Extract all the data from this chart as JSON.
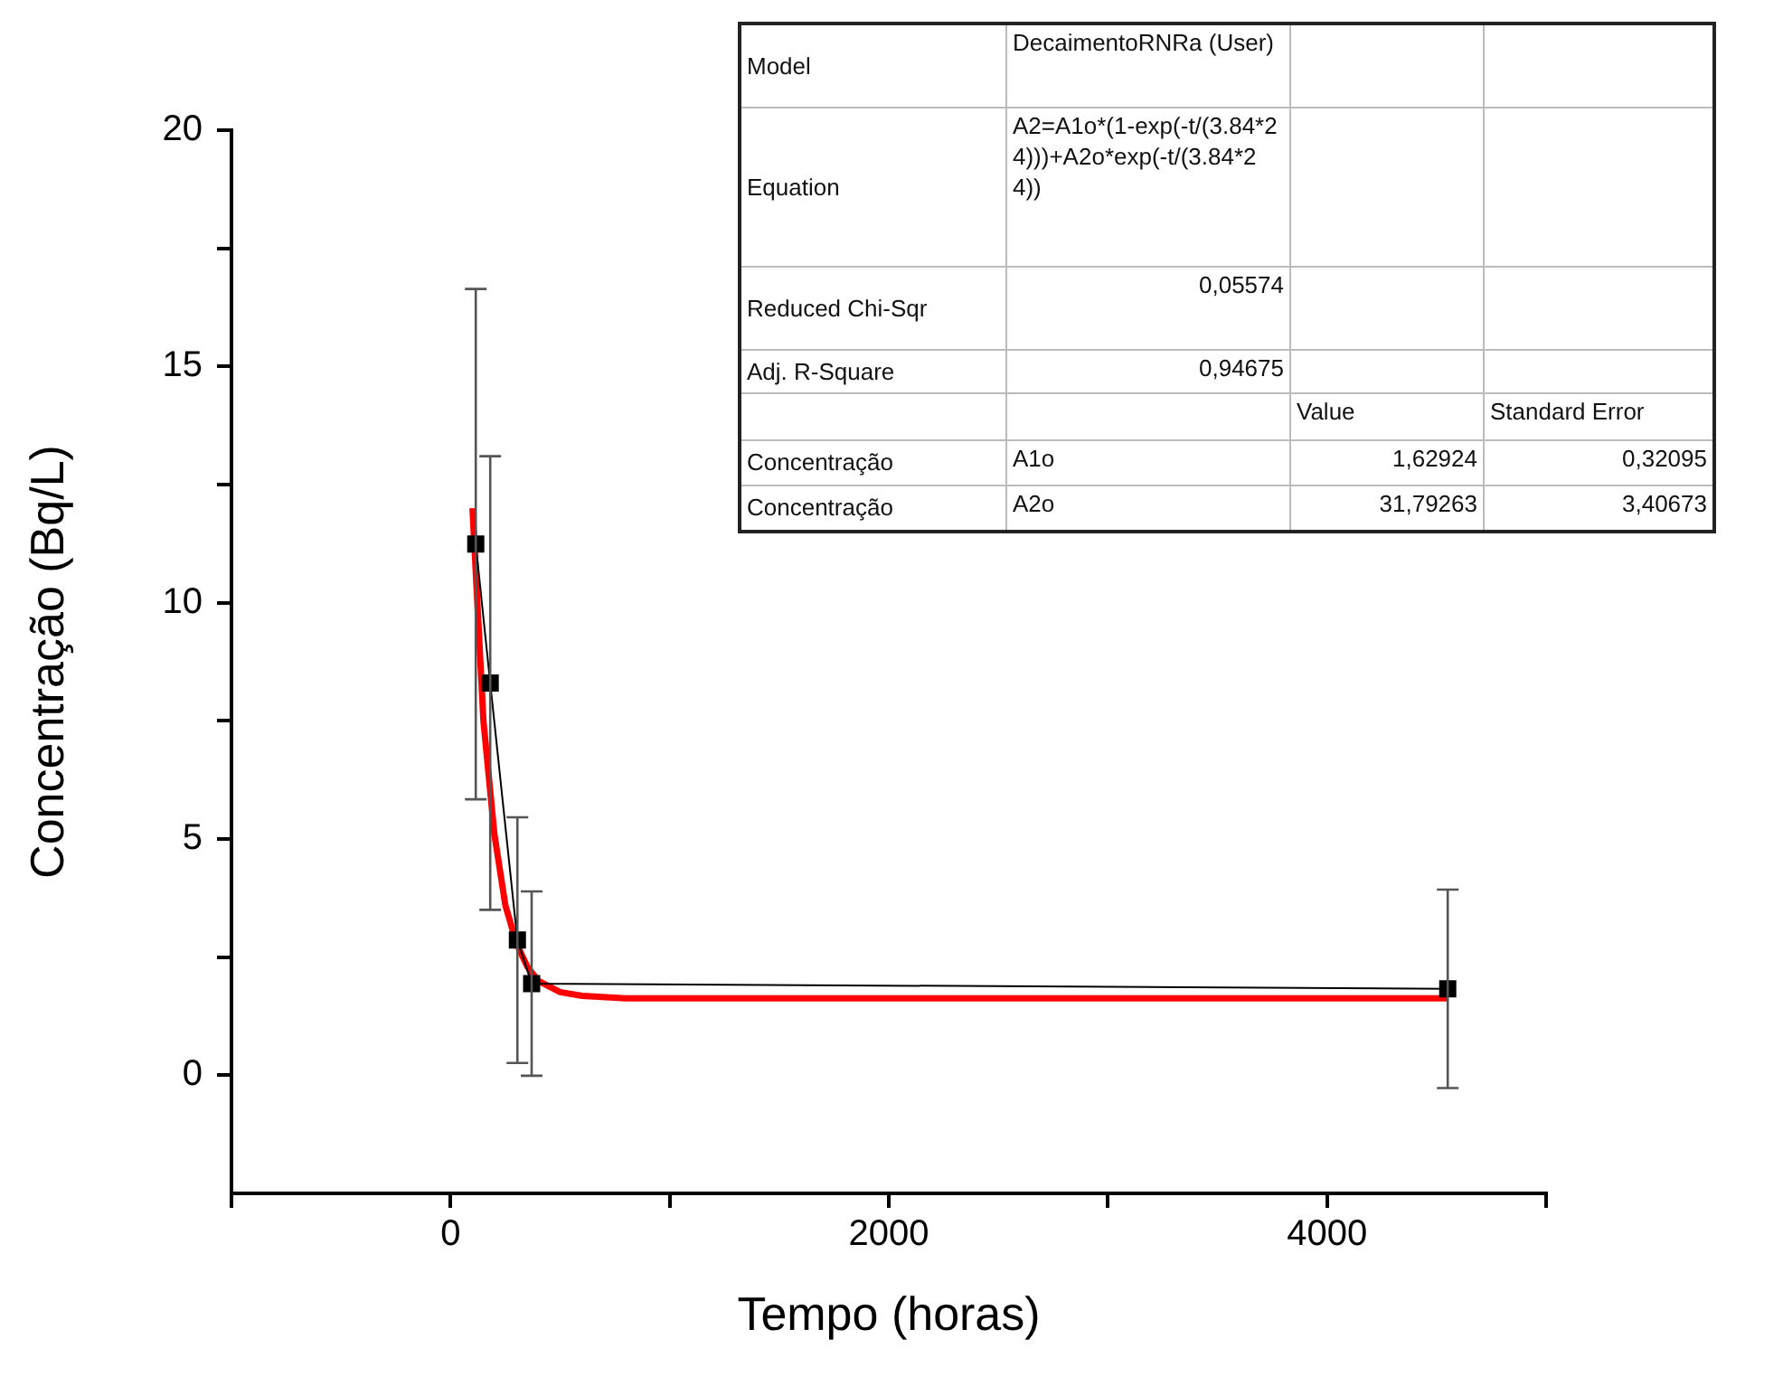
{
  "chart_data": {
    "type": "line",
    "xlabel": "Tempo (horas)",
    "ylabel": "Concentração (Bq/L)",
    "xlim": [
      -1000,
      5000
    ],
    "xticks": [
      {
        "value": -1000,
        "label": null
      },
      0,
      {
        "value": 1000,
        "label": null
      },
      2000,
      {
        "value": 3000,
        "label": null
      },
      4000,
      {
        "value": 5000,
        "label": null
      }
    ],
    "ylim": [
      -2.5,
      20
    ],
    "yticks": [
      0,
      {
        "value": 2.5,
        "label": null
      },
      5,
      {
        "value": 7.5,
        "label": null
      },
      10,
      {
        "value": 12.5,
        "label": null
      },
      15,
      {
        "value": 17.5,
        "label": null
      },
      20
    ],
    "grid": false,
    "legend": false,
    "series": [
      {
        "color": "#000000",
        "marker": "square",
        "x": [
          115,
          181,
          305,
          370,
          4551
        ],
        "values": [
          11.24,
          8.3,
          2.86,
          1.94,
          1.83
        ],
        "errors": [
          5.4,
          4.8,
          2.6,
          1.95,
          2.1
        ]
      },
      {
        "color": "#ff0000",
        "marker": "none",
        "x": [
          100,
          150,
          200,
          250,
          300,
          350,
          400,
          500,
          600,
          800,
          4550
        ],
        "values": [
          12.0,
          7.5,
          5.1,
          3.6,
          2.8,
          2.3,
          2.0,
          1.76,
          1.68,
          1.63,
          1.63
        ]
      }
    ],
    "annotations": [
      "Model",
      "DecaimentoRNRa (User)",
      "Equation",
      "A2=A1o*(1-exp(-t/(3.84*24)))+A2o*exp(-t/(3.84*24))",
      "Reduced Chi-Sqr",
      "0,05574",
      "Adj. R-Square",
      "0,94675",
      "Value",
      "Standard Error",
      "Concentração",
      "A1o",
      "1,62924",
      "0,32095",
      "Concentração",
      "A2o",
      "31,79263",
      "3,40673"
    ]
  }
}
